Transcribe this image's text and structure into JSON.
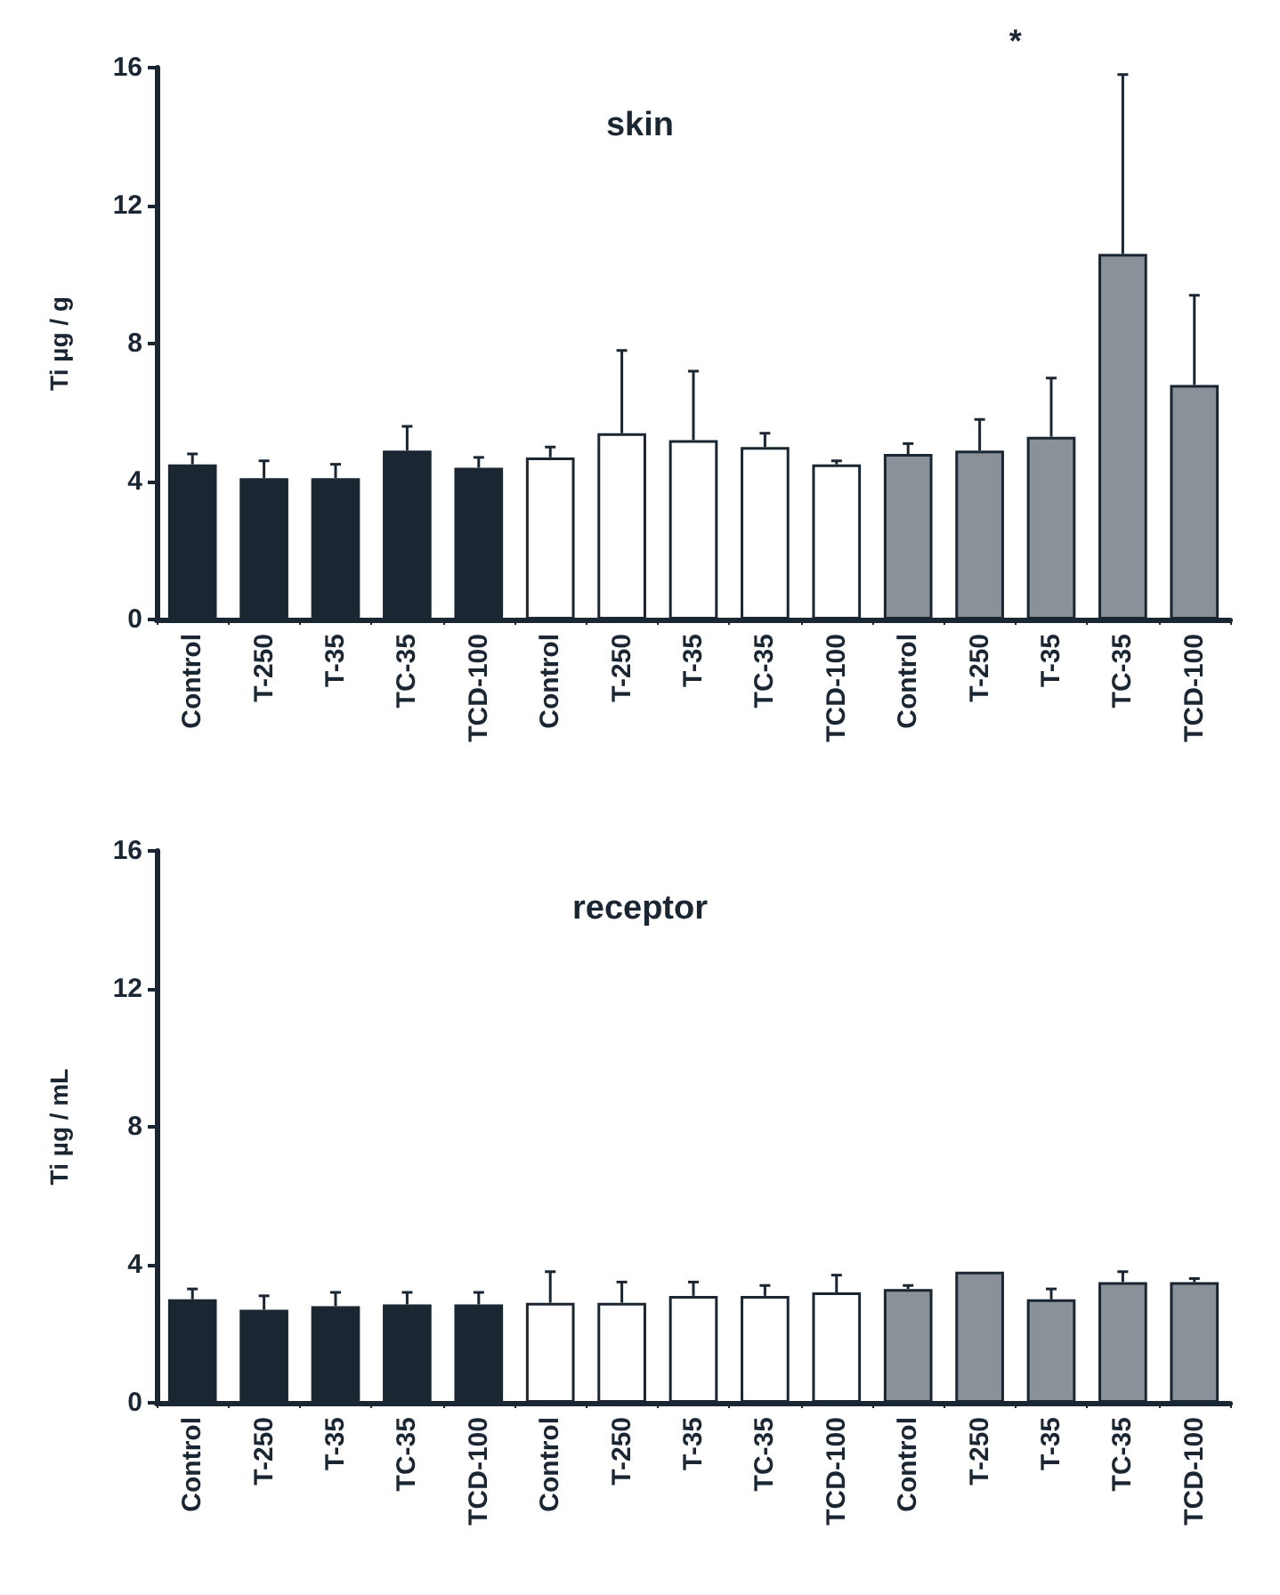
{
  "chart_data": [
    {
      "type": "bar",
      "title": "skin",
      "ylabel": "Ti µg / g",
      "categories": [
        "Control",
        "T-250",
        "T-35",
        "TC-35",
        "TCD-100",
        "Control",
        "T-250",
        "T-35",
        "TC-35",
        "TCD-100",
        "Control",
        "T-250",
        "T-35",
        "TC-35",
        "TCD-100"
      ],
      "series": [
        {
          "color": "#1b2633",
          "values": [
            4.5,
            4.1,
            4.1,
            4.9,
            4.4,
            null,
            null,
            null,
            null,
            null,
            null,
            null,
            null,
            null,
            null
          ],
          "errors": [
            [
              4.5,
              4.8
            ],
            [
              4.1,
              4.6
            ],
            [
              4.1,
              4.5
            ],
            [
              4.9,
              5.6
            ],
            [
              4.4,
              4.7
            ],
            null,
            null,
            null,
            null,
            null,
            null,
            null,
            null,
            null,
            null
          ]
        },
        {
          "color": "#ffffff",
          "values": [
            null,
            null,
            null,
            null,
            null,
            4.7,
            5.4,
            5.2,
            5.0,
            4.5,
            null,
            null,
            null,
            null,
            null
          ],
          "errors": [
            null,
            null,
            null,
            null,
            null,
            [
              4.7,
              5.0
            ],
            [
              5.4,
              7.8
            ],
            [
              5.2,
              7.2
            ],
            [
              5.0,
              5.4
            ],
            [
              4.5,
              4.6
            ],
            null,
            null,
            null,
            null,
            null
          ]
        },
        {
          "color": "#8a9199",
          "values": [
            null,
            null,
            null,
            null,
            null,
            null,
            null,
            null,
            null,
            null,
            4.8,
            4.9,
            5.3,
            10.6,
            6.8
          ],
          "errors": [
            null,
            null,
            null,
            null,
            null,
            null,
            null,
            null,
            null,
            null,
            [
              4.8,
              5.1
            ],
            [
              4.9,
              5.8
            ],
            [
              5.3,
              7.0
            ],
            [
              10.6,
              15.8
            ],
            [
              6.8,
              9.4
            ]
          ]
        }
      ],
      "ylim": [
        0,
        16
      ],
      "yticks": [
        0,
        4,
        8,
        12,
        16
      ],
      "grid": false,
      "annotations": [
        "*"
      ]
    },
    {
      "type": "bar",
      "title": "receptor",
      "ylabel": "Ti µg / mL",
      "categories": [
        "Control",
        "T-250",
        "T-35",
        "TC-35",
        "TCD-100",
        "Control",
        "T-250",
        "T-35",
        "TC-35",
        "TCD-100",
        "Control",
        "T-250",
        "T-35",
        "TC-35",
        "TCD-100"
      ],
      "series": [
        {
          "color": "#1b2633",
          "values": [
            3.0,
            2.7,
            2.8,
            2.85,
            2.85,
            null,
            null,
            null,
            null,
            null,
            null,
            null,
            null,
            null,
            null
          ],
          "errors": [
            [
              3.0,
              3.3
            ],
            [
              2.7,
              3.1
            ],
            [
              2.8,
              3.2
            ],
            [
              2.85,
              3.2
            ],
            [
              2.85,
              3.2
            ],
            null,
            null,
            null,
            null,
            null,
            null,
            null,
            null,
            null,
            null
          ]
        },
        {
          "color": "#ffffff",
          "values": [
            null,
            null,
            null,
            null,
            null,
            2.9,
            2.9,
            3.1,
            3.1,
            3.2,
            null,
            null,
            null,
            null,
            null
          ],
          "errors": [
            null,
            null,
            null,
            null,
            null,
            [
              2.9,
              3.8
            ],
            [
              2.9,
              3.5
            ],
            [
              3.1,
              3.5
            ],
            [
              3.1,
              3.4
            ],
            [
              3.2,
              3.7
            ],
            null,
            null,
            null,
            null,
            null
          ]
        },
        {
          "color": "#8a9199",
          "values": [
            null,
            null,
            null,
            null,
            null,
            null,
            null,
            null,
            null,
            null,
            3.3,
            3.8,
            3.0,
            3.5,
            3.5
          ],
          "errors": [
            null,
            null,
            null,
            null,
            null,
            null,
            null,
            null,
            null,
            null,
            [
              3.3,
              3.4
            ],
            null,
            [
              3.0,
              3.3
            ],
            [
              3.5,
              3.8
            ],
            [
              3.5,
              3.6
            ]
          ]
        }
      ],
      "ylim": [
        0,
        16
      ],
      "yticks": [
        0,
        4,
        8,
        12,
        16
      ],
      "grid": false
    }
  ]
}
